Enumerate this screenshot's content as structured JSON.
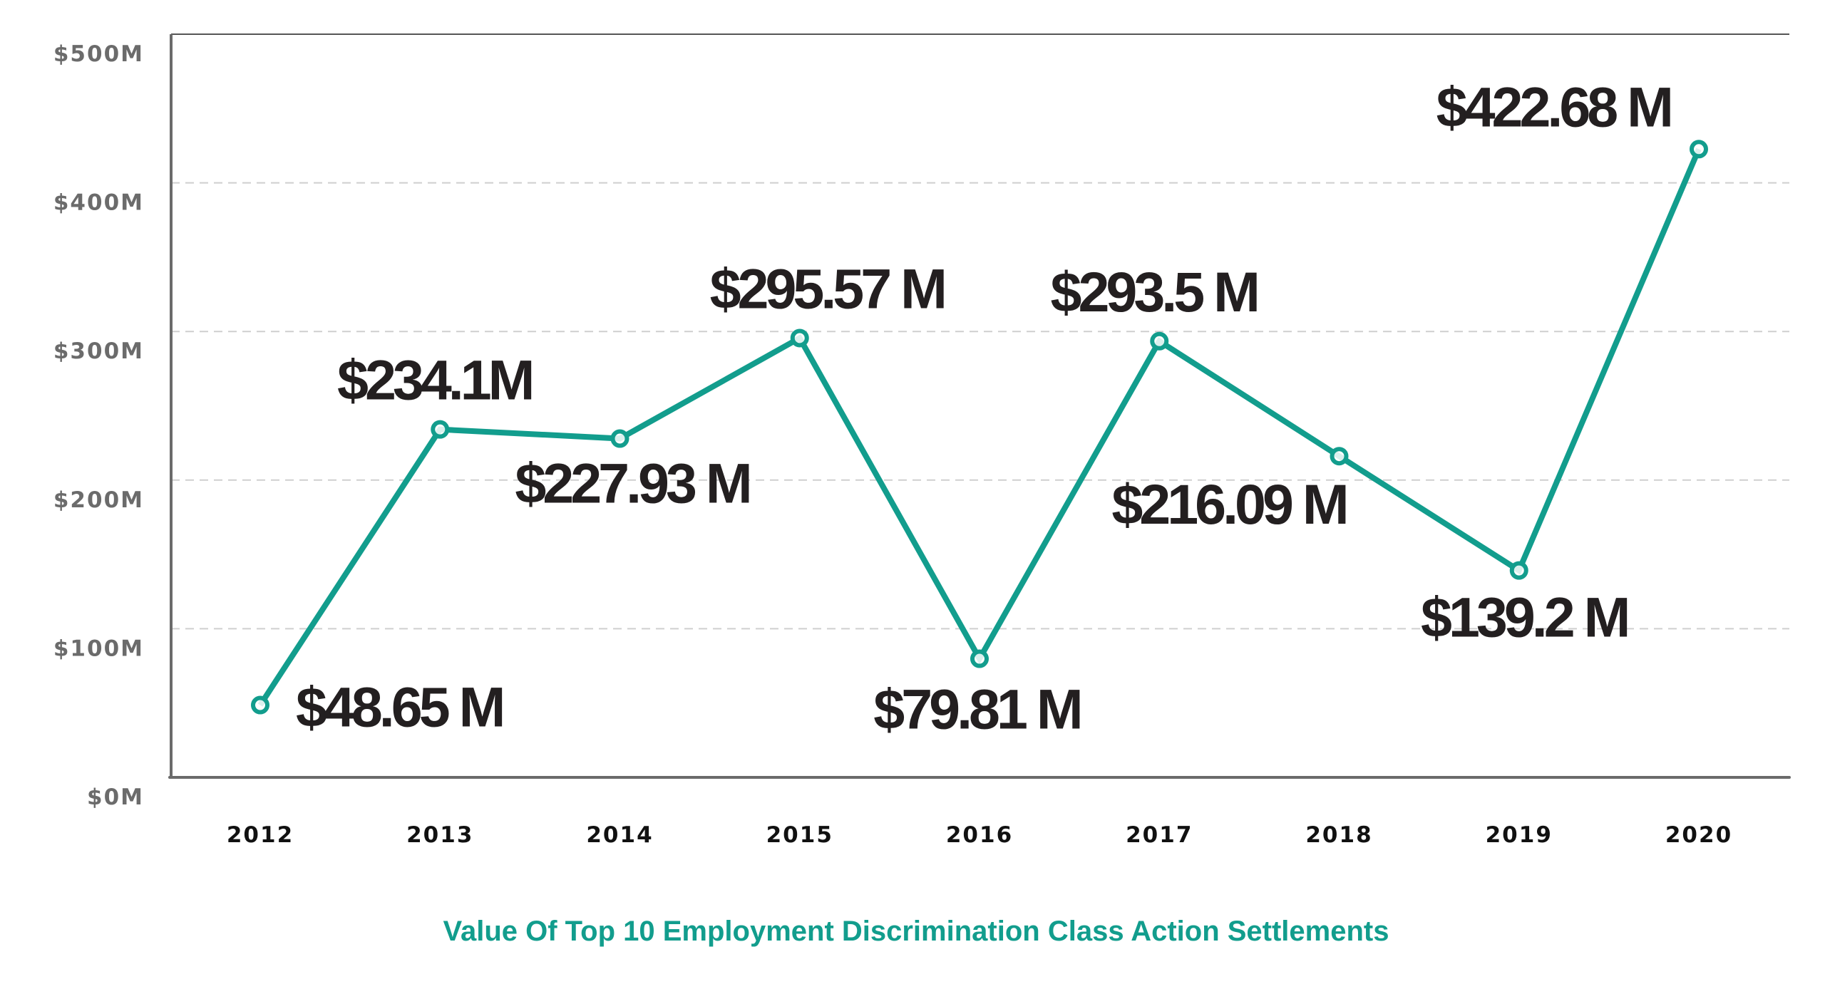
{
  "chart_data": {
    "type": "line",
    "title": "Value Of Top 10 Employment Discrimination Class Action Settlements",
    "xlabel": "",
    "ylabel": "",
    "categories": [
      "2012",
      "2013",
      "2014",
      "2015",
      "2016",
      "2017",
      "2018",
      "2019",
      "2020"
    ],
    "series": [
      {
        "name": "Settlement value ($M)",
        "values": [
          48.65,
          234.1,
          227.93,
          295.57,
          79.81,
          293.5,
          216.09,
          139.2,
          422.68
        ],
        "labels": [
          "$48.65 M",
          "$234.1M",
          "$227.93 M",
          "$295.57 M",
          "$79.81 M",
          "$293.5 M",
          "$216.09 M",
          "$139.2 M",
          "$422.68 M"
        ],
        "label_positions": [
          "right",
          "above",
          "below",
          "above",
          "below",
          "above",
          "below",
          "below",
          "left"
        ]
      }
    ],
    "ylim": [
      0,
      500
    ],
    "yticks": [
      0,
      100,
      200,
      300,
      400,
      500
    ],
    "ytick_labels": [
      "$0M",
      "$100M",
      "$200M",
      "$300M",
      "$400M",
      "$500M"
    ],
    "grid": true,
    "legend": "none",
    "colors": {
      "line": "#129d8d",
      "title": "#129d8d",
      "axis": "#6b6b6b",
      "grid": "#cfcfcf",
      "ytick_text": "#6b6b6b",
      "xtick_text": "#111111",
      "data_label": "#231f20"
    }
  }
}
